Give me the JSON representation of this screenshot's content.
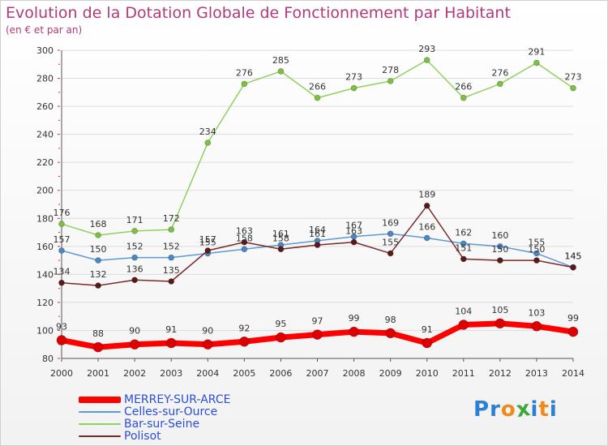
{
  "title": "Evolution de la Dotation Globale de Fonctionnement par Habitant",
  "subtitle": "(en € et par an)",
  "logo": {
    "text": "Proxiti",
    "letters": [
      "P",
      "r",
      "o",
      "x",
      "i",
      "t",
      "i"
    ]
  },
  "colors": {
    "title": "#b03a7a",
    "legend_text": "#2a4fd6",
    "axis": "#555555",
    "grid": "#dddddd",
    "logo": [
      "#2a7fd6",
      "#2a7fd6",
      "#f08a1c",
      "#3aa83a",
      "#2a7fd6",
      "#f08a1c",
      "#2a7fd6"
    ]
  },
  "chart_data": {
    "type": "line",
    "title": "Evolution de la Dotation Globale de Fonctionnement par Habitant",
    "subtitle": "(en € et par an)",
    "x": [
      "2000",
      "2001",
      "2002",
      "2003",
      "2004",
      "2005",
      "2006",
      "2007",
      "2008",
      "2009",
      "2010",
      "2011",
      "2012",
      "2013",
      "2014"
    ],
    "ylim": [
      80,
      300
    ],
    "yticks": [
      80,
      100,
      120,
      140,
      160,
      180,
      200,
      220,
      240,
      260,
      280,
      300
    ],
    "grid": "horizontal",
    "legend": "bottom-left",
    "series": [
      {
        "name": "MERREY-SUR-ARCE",
        "color": "#ff0000",
        "marker": "#dd0000",
        "width": 7,
        "values": [
          93,
          88,
          90,
          91,
          90,
          92,
          95,
          97,
          99,
          98,
          91,
          104,
          105,
          103,
          99
        ],
        "labels": [
          "93",
          "88",
          "90",
          "91",
          "90",
          "92",
          "95",
          "97",
          "99",
          "98",
          "91",
          "104",
          "105",
          "103",
          "99"
        ]
      },
      {
        "name": "Celles-sur-Ource",
        "color": "#5b9bd5",
        "marker": "#4a86c0",
        "width": 1.5,
        "values": [
          157,
          150,
          152,
          152,
          155,
          158,
          161,
          164,
          167,
          169,
          166,
          162,
          160,
          155,
          145
        ],
        "labels": [
          "157",
          "150",
          "152",
          "152",
          "155",
          "158",
          "161",
          "164",
          "167",
          "169",
          "166",
          "162",
          "160",
          "155",
          "145"
        ]
      },
      {
        "name": "Bar-sur-Seine",
        "color": "#90d060",
        "marker": "#7cc040",
        "width": 1.5,
        "values": [
          176,
          168,
          171,
          172,
          234,
          276,
          285,
          266,
          273,
          278,
          293,
          266,
          276,
          291,
          273
        ],
        "labels": [
          "176",
          "168",
          "171",
          "172",
          "234",
          "276",
          "285",
          "266",
          "273",
          "278",
          "293",
          "266",
          "276",
          "291",
          "273"
        ]
      },
      {
        "name": "Polisot",
        "color": "#7a2a2a",
        "marker": "#5a1a1a",
        "width": 1.5,
        "values": [
          134,
          132,
          136,
          135,
          157,
          163,
          158,
          161,
          163,
          155,
          189,
          151,
          150,
          150,
          145
        ],
        "labels": [
          "134",
          "132",
          "136",
          "135",
          "157",
          "163",
          "158",
          "161",
          "163",
          "155",
          "189",
          "151",
          "150",
          "150",
          "145"
        ]
      }
    ]
  }
}
